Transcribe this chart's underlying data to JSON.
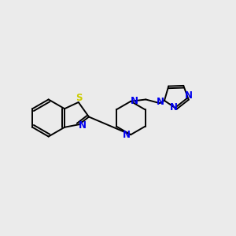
{
  "bg_color": "#ebebeb",
  "bond_color": "#000000",
  "N_color": "#0000ee",
  "S_color": "#cccc00",
  "font_size": 8.5,
  "line_width": 1.4,
  "fig_width": 3.0,
  "fig_height": 3.0,
  "dpi": 100,
  "xlim": [
    0,
    10
  ],
  "ylim": [
    2,
    8
  ]
}
